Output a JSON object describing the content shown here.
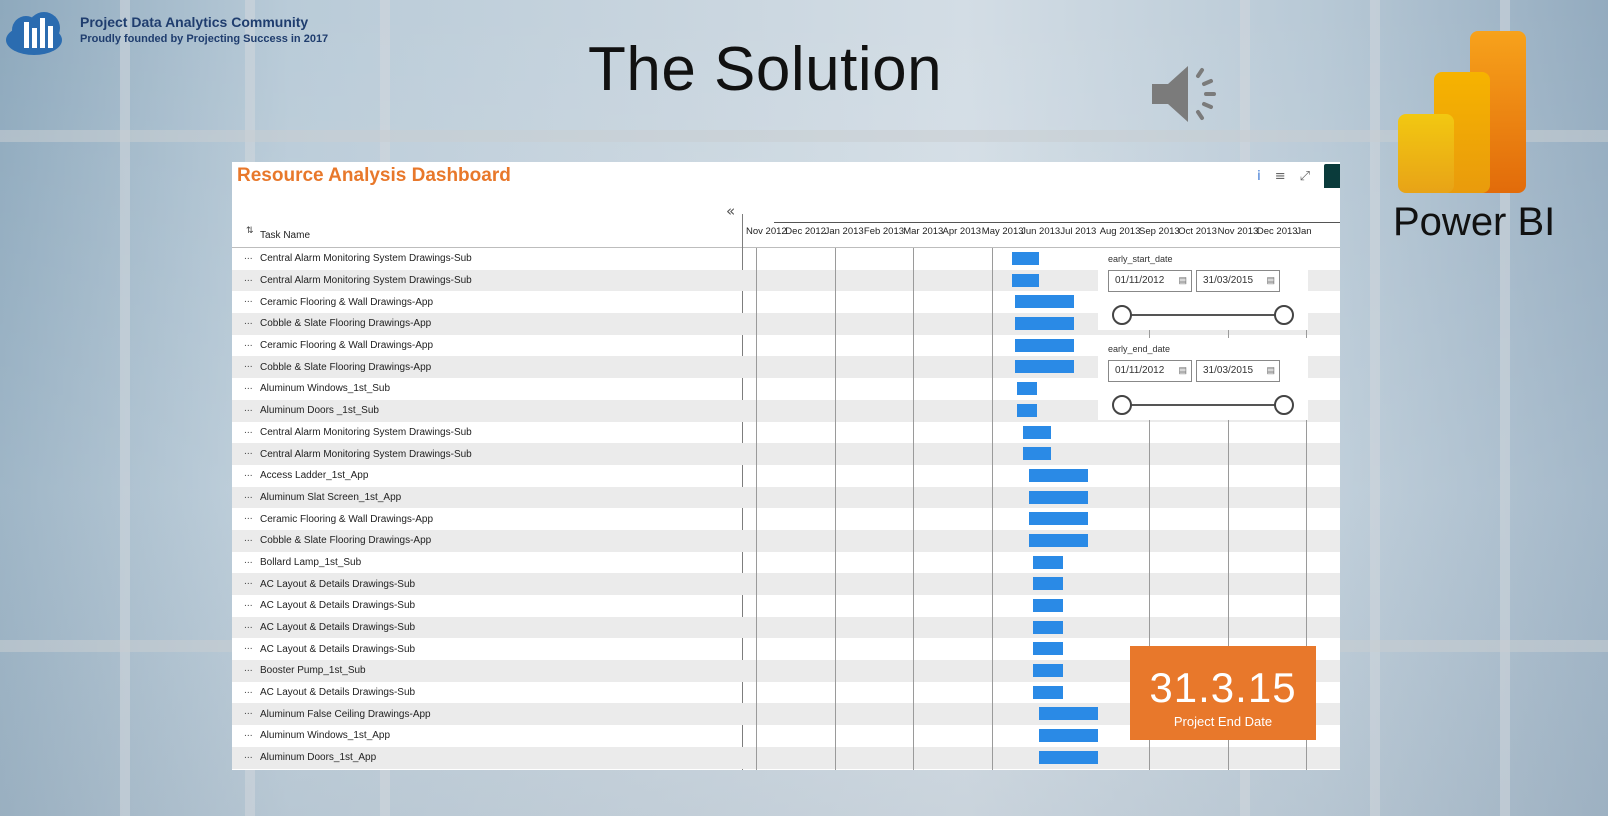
{
  "brand": {
    "name": "Project Data Analytics Community",
    "tagline": "Proudly founded by Projecting Success in 2017"
  },
  "slide": {
    "title": "The Solution"
  },
  "powerbi": {
    "label": "Power BI"
  },
  "dashboard": {
    "title": "Resource Analysis Dashboard",
    "column_header": "Task Name",
    "collapse_glyph": "«",
    "months": [
      "Nov 2012",
      "Dec 2012",
      "Jan 2013",
      "Feb 2013",
      "Mar 2013",
      "Apr 2013",
      "May 2013",
      "Jun 2013",
      "Jul 2013",
      "Aug 2013",
      "Sep 2013",
      "Oct 2013",
      "Nov 2013",
      "Dec 2013",
      "Jan"
    ],
    "tasks": [
      {
        "name": "Central Alarm Monitoring System Drawings-Sub",
        "start": 6.4,
        "end": 7.1
      },
      {
        "name": "Central Alarm Monitoring System Drawings-Sub",
        "start": 6.4,
        "end": 7.1
      },
      {
        "name": "Ceramic Flooring & Wall Drawings-App",
        "start": 6.5,
        "end": 8.0
      },
      {
        "name": "Cobble & Slate Flooring Drawings-App",
        "start": 6.5,
        "end": 8.0
      },
      {
        "name": "Ceramic Flooring & Wall Drawings-App",
        "start": 6.5,
        "end": 8.0
      },
      {
        "name": "Cobble & Slate Flooring Drawings-App",
        "start": 6.5,
        "end": 8.0
      },
      {
        "name": "Aluminum Windows_1st_Sub",
        "start": 6.55,
        "end": 7.05
      },
      {
        "name": "Aluminum Doors _1st_Sub",
        "start": 6.55,
        "end": 7.05
      },
      {
        "name": "Central Alarm Monitoring System Drawings-Sub",
        "start": 6.7,
        "end": 7.4
      },
      {
        "name": "Central Alarm Monitoring System Drawings-Sub",
        "start": 6.7,
        "end": 7.4
      },
      {
        "name": "Access Ladder_1st_App",
        "start": 6.85,
        "end": 8.35
      },
      {
        "name": "Aluminum Slat Screen_1st_App",
        "start": 6.85,
        "end": 8.35
      },
      {
        "name": "Ceramic Flooring & Wall Drawings-App",
        "start": 6.85,
        "end": 8.35
      },
      {
        "name": "Cobble & Slate Flooring Drawings-App",
        "start": 6.85,
        "end": 8.35
      },
      {
        "name": "Bollard Lamp_1st_Sub",
        "start": 6.95,
        "end": 7.7
      },
      {
        "name": "AC Layout & Details Drawings-Sub",
        "start": 6.95,
        "end": 7.7
      },
      {
        "name": "AC Layout & Details Drawings-Sub",
        "start": 6.95,
        "end": 7.7
      },
      {
        "name": "AC Layout & Details Drawings-Sub",
        "start": 6.95,
        "end": 7.7
      },
      {
        "name": "AC Layout & Details Drawings-Sub",
        "start": 6.95,
        "end": 7.7
      },
      {
        "name": "Booster Pump_1st_Sub",
        "start": 6.95,
        "end": 7.7
      },
      {
        "name": "AC Layout & Details Drawings-Sub",
        "start": 6.95,
        "end": 7.7
      },
      {
        "name": "Aluminum False Ceiling Drawings-App",
        "start": 7.1,
        "end": 8.6
      },
      {
        "name": "Aluminum Windows_1st_App",
        "start": 7.1,
        "end": 8.6
      },
      {
        "name": "Aluminum Doors_1st_App",
        "start": 7.1,
        "end": 8.6
      }
    ],
    "slicers": [
      {
        "label": "early_start_date",
        "from": "01/11/2012",
        "to": "31/03/2015",
        "range": [
          0,
          1
        ]
      },
      {
        "label": "early_end_date",
        "from": "01/11/2012",
        "to": "31/03/2015",
        "range": [
          0,
          1
        ]
      }
    ],
    "kpi": {
      "value": "31.3.15",
      "label": "Project End Date"
    },
    "bar_color": "#2a8ae6",
    "accent_color": "#e8782b"
  }
}
